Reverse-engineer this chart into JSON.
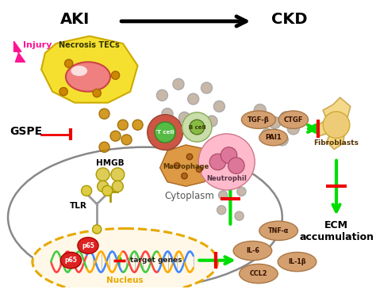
{
  "background_color": "#ffffff",
  "aki_label": "AKI",
  "ckd_label": "CKD",
  "injury_label": "Injury",
  "injury_color": "#ff1493",
  "necrosis_label": "Necrosis TECs",
  "gspe_label": "GSPE",
  "hmgb_label": "HMGB",
  "tlr_label": "TLR",
  "p65_label": "p65",
  "nucleus_label": "Nucleus",
  "cytoplasm_label": "Cytoplasm",
  "target_label": "target genes",
  "tcell_label": "'T cell",
  "bcell_label": "B cell",
  "macrophage_label": "Macrophage",
  "neutrophil_label": "Neutrophil",
  "tgfb_label": "TGF-β",
  "ctgf_label": "CTGF",
  "pai1_label": "PAI1",
  "fibroblasts_label": "Fibroblasts",
  "ecm_label": "ECM\naccumulation",
  "tnfa_label": "TNF-α",
  "il6_label": "IL-6",
  "il1b_label": "IL-1β",
  "ccl2_label": "CCL2",
  "green_color": "#00dd00",
  "red_color": "#ee0000",
  "cell_yellow": "#f5e030",
  "fibroblast_color": "#f5d98a",
  "nucleus_border_color": "#e6a800",
  "damp_color": "#cc8800",
  "small_dot_color": "#c8b8a8"
}
